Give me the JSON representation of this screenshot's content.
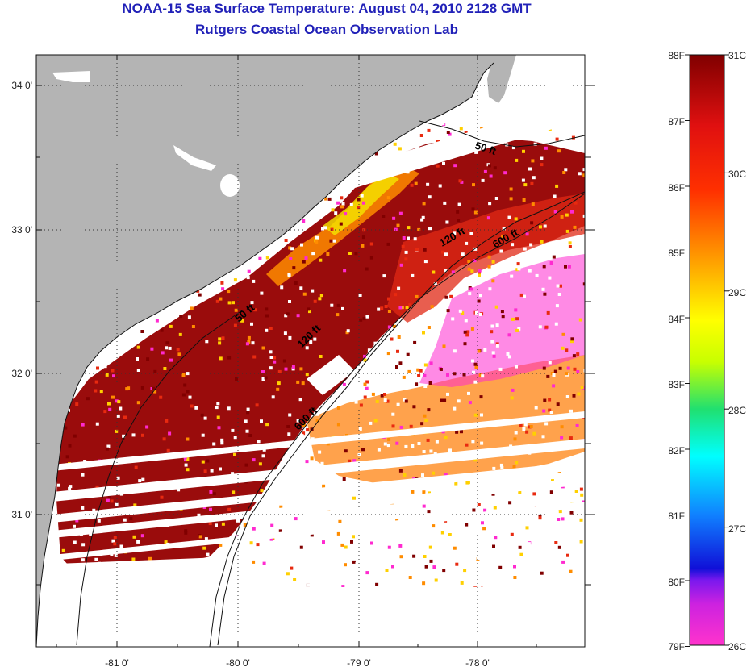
{
  "title": "NOAA-15 Sea Surface Temperature:  August 04, 2010 2128 GMT",
  "subtitle": "Rutgers Coastal Ocean Observation Lab",
  "axes": {
    "x_ticks": [
      "-81 0'",
      "-80 0'",
      "-79 0'",
      "-78 0'"
    ],
    "y_ticks": [
      "34 0'",
      "33 0'",
      "32 0'",
      "31 0'"
    ]
  },
  "isobaths": [
    "50 ft",
    "120 ft",
    "600 ft",
    "50 ft",
    "120 ft",
    "600 ft"
  ],
  "colorbar": {
    "fahrenheit": [
      "88F",
      "87F",
      "86F",
      "85F",
      "84F",
      "83F",
      "82F",
      "81F",
      "80F",
      "79F"
    ],
    "celsius": [
      "31C",
      "30C",
      "29C",
      "28C",
      "27C",
      "26C"
    ],
    "colors": [
      "#ff33cc",
      "#9a22ee",
      "#1010d8",
      "#1080ff",
      "#00ffff",
      "#20e070",
      "#ffff00",
      "#ffa000",
      "#ff3000",
      "#e01010",
      "#800000"
    ]
  },
  "colors": {
    "land": "#b4b4b4",
    "title": "#2121b8",
    "hot": "#9a0c0c",
    "warm": "#e82a10",
    "orange": "#ff8c00",
    "yellow": "#f5e600",
    "cool": "#ff2ad0"
  }
}
